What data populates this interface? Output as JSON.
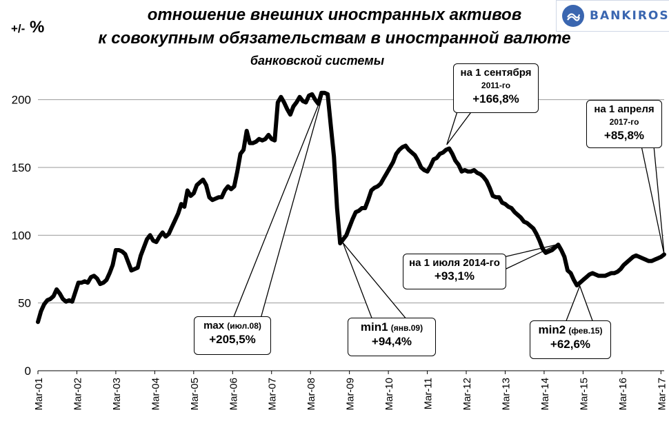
{
  "header": {
    "title_line1": "отношение внешних иностранных активов",
    "title_line2": "к совокупным обязательствам  в иностранной валюте",
    "title_line3": "банковской системы",
    "y_unit_prefix": "+/-",
    "y_unit": "%",
    "logo_text": "BANKIROS"
  },
  "chart_data": {
    "type": "line",
    "title": "отношение внешних иностранных активов к совокупным обязательствам в иностранной валюте банковской системы",
    "xlabel": "",
    "ylabel": "+/- %",
    "ylim": [
      0,
      210
    ],
    "yticks": [
      0,
      50,
      100,
      150,
      200
    ],
    "grid": true,
    "legend": "none",
    "line_color": "#000000",
    "x_tick_labels": [
      "Mar-01",
      "Mar-02",
      "Mar-03",
      "Mar-04",
      "Mar-05",
      "Mar-06",
      "Mar-07",
      "Mar-08",
      "Mar-09",
      "Mar-10",
      "Mar-11",
      "Mar-12",
      "Mar-13",
      "Mar-14",
      "Mar-15",
      "Mar-16",
      "Mar-17"
    ],
    "series": [
      {
        "x_start": "2001-03",
        "x_end": "2017-04",
        "values": [
          36,
          44,
          49,
          52,
          53,
          55,
          60,
          57,
          53,
          51,
          52,
          51,
          58,
          65,
          65,
          66,
          65,
          69,
          70,
          68,
          64,
          65,
          67,
          72,
          78,
          89,
          89,
          88,
          86,
          80,
          74,
          75,
          76,
          85,
          91,
          97,
          100,
          96,
          95,
          99,
          102,
          99,
          101,
          106,
          111,
          116,
          123,
          121,
          133,
          129,
          131,
          137,
          139,
          141,
          137,
          128,
          126,
          127,
          128,
          128,
          133,
          136,
          134,
          136,
          147,
          160,
          163,
          177,
          168,
          168,
          169,
          171,
          170,
          171,
          174,
          171,
          170,
          198,
          202,
          198,
          193,
          189,
          195,
          198,
          202,
          199,
          198,
          203,
          204,
          200,
          197,
          205,
          205,
          204,
          181,
          158,
          120,
          94,
          97,
          100,
          106,
          112,
          117,
          118,
          120,
          120,
          126,
          133,
          135,
          136,
          138,
          142,
          146,
          150,
          154,
          160,
          163,
          165,
          166,
          163,
          161,
          159,
          155,
          150,
          148,
          147,
          151,
          156,
          157,
          160,
          161,
          163,
          164,
          160,
          155,
          152,
          147,
          148,
          147,
          147,
          148,
          146,
          145,
          143,
          140,
          135,
          129,
          128,
          128,
          124,
          123,
          121,
          120,
          117,
          115,
          113,
          110,
          109,
          107,
          105,
          101,
          96,
          90,
          87,
          88,
          89,
          91,
          93,
          89,
          84,
          74,
          72,
          67,
          63,
          65,
          67,
          69,
          71,
          72,
          71,
          70,
          70,
          70,
          71,
          72,
          72,
          73,
          75,
          78,
          80,
          82,
          84,
          85,
          84,
          83,
          82,
          81,
          81,
          82,
          83,
          84,
          85.8
        ]
      }
    ],
    "annotations": [
      {
        "date": "2008-07",
        "text_line1": "max",
        "text_line1_small": "(июл.08)",
        "value_text": "+205,5%",
        "value": 205.5
      },
      {
        "date": "2009-01",
        "text_line1": "min1",
        "text_line1_small": "(янв.09)",
        "value_text": "+94,4%",
        "value": 94.4
      },
      {
        "date": "2011-09",
        "text_line1": "на 1 сентября",
        "text_line2": "2011-го",
        "value_text": "+166,8%",
        "value": 166.8
      },
      {
        "date": "2014-07",
        "text_line1": "на 1 июля 2014-го",
        "value_text": "+93,1%",
        "value": 93.1
      },
      {
        "date": "2015-02",
        "text_line1": "min2",
        "text_line1_small": "(фев.15)",
        "value_text": "+62,6%",
        "value": 62.6
      },
      {
        "date": "2017-04",
        "text_line1": "на 1 апреля",
        "text_line2": "2017-го",
        "value_text": "+85,8%",
        "value": 85.8
      }
    ]
  }
}
